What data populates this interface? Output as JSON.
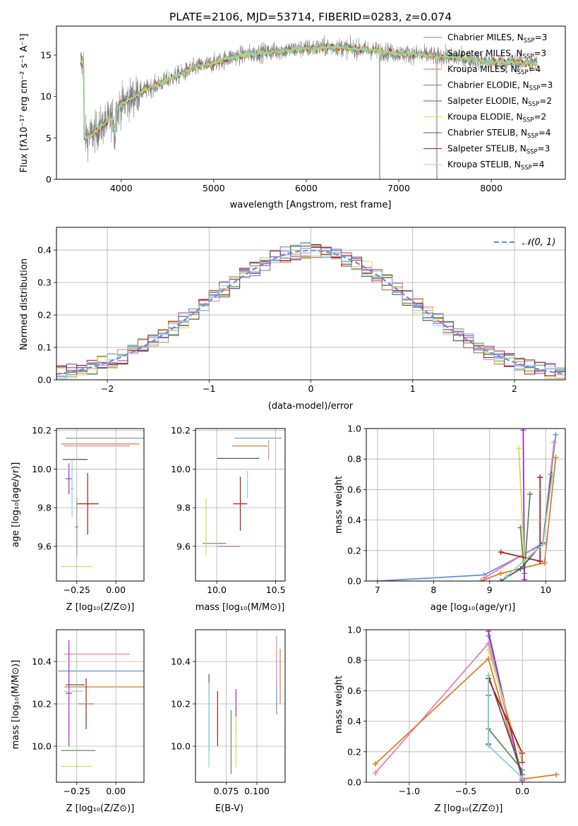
{
  "figure": {
    "title": "PLATE=2106, MJD=53714, FIBERID=0283, z=0.074"
  },
  "colors": {
    "c_miles_chab": "#6a8fd8",
    "c_miles_salp": "#e57fc0",
    "c_miles_krou": "#e07b20",
    "c_elodie_chab": "#5c8a5c",
    "c_elodie_salp": "#9b2fc0",
    "c_elodie_krou": "#d4e04a",
    "c_stelib_chab": "#555555",
    "c_stelib_salp": "#b01818",
    "c_stelib_krou": "#7fd8d8",
    "data_spectrum": "#808080"
  },
  "chart_data": [
    {
      "id": "spectrum",
      "type": "line",
      "xlabel": "wavelength [Angstrom, rest frame]",
      "ylabel": "Flux [fλ10⁻¹⁷ erg cm⁻² s⁻¹ A⁻¹]",
      "xlim": [
        3300,
        8800
      ],
      "ylim": [
        0,
        18.5
      ],
      "xticks": [
        4000,
        5000,
        6000,
        7000,
        8000
      ],
      "yticks": [
        0,
        5,
        10,
        15
      ],
      "legend_position": "right",
      "legend": [
        {
          "label": "Chabrier MILES, N",
          "sub": "SSP",
          "tail": "=3",
          "color": "c_miles_chab"
        },
        {
          "label": "Salpeter MILES, N",
          "sub": "SSP",
          "tail": "=3",
          "color": "c_miles_salp"
        },
        {
          "label": "Kroupa MILES, N",
          "sub": "SSP",
          "tail": "=4",
          "color": "c_miles_krou"
        },
        {
          "label": "Chabrier ELODIE, N",
          "sub": "SSP",
          "tail": "=3",
          "color": "c_elodie_chab"
        },
        {
          "label": "Salpeter ELODIE, N",
          "sub": "SSP",
          "tail": "=2",
          "color": "c_elodie_salp"
        },
        {
          "label": "Kroupa ELODIE, N",
          "sub": "SSP",
          "tail": "=2",
          "color": "c_elodie_krou"
        },
        {
          "label": "Chabrier STELIB, N",
          "sub": "SSP",
          "tail": "=4",
          "color": "c_stelib_chab"
        },
        {
          "label": "Salpeter STELIB, N",
          "sub": "SSP",
          "tail": "=3",
          "color": "c_stelib_salp"
        },
        {
          "label": "Kroupa STELIB, N",
          "sub": "SSP",
          "tail": "=4",
          "color": "c_stelib_krou"
        }
      ],
      "continuum": [
        [
          3600,
          5.0
        ],
        [
          3700,
          5.5
        ],
        [
          3800,
          6.5
        ],
        [
          3900,
          7.5
        ],
        [
          4000,
          9.0
        ],
        [
          4200,
          10.5
        ],
        [
          4500,
          12.0
        ],
        [
          4800,
          13.5
        ],
        [
          5000,
          14.0
        ],
        [
          5200,
          14.8
        ],
        [
          5500,
          15.3
        ],
        [
          6000,
          15.8
        ],
        [
          6300,
          16.0
        ],
        [
          6700,
          15.6
        ],
        [
          7000,
          15.2
        ],
        [
          7300,
          15.0
        ],
        [
          7500,
          14.8
        ],
        [
          8000,
          14.2
        ],
        [
          8500,
          14.0
        ]
      ]
    },
    {
      "id": "residuals",
      "type": "histogram",
      "xlabel": "(data-model)/error",
      "ylabel": "Normed distribution",
      "xlim": [
        -2.5,
        2.5
      ],
      "ylim": [
        0,
        0.47
      ],
      "xticks": [
        -2,
        -1,
        0,
        1,
        2
      ],
      "yticks": [
        0.0,
        0.1,
        0.2,
        0.3,
        0.4
      ],
      "bin_width": 0.1,
      "legend_position": "top-right",
      "normal_label": "𝒩(0, 1)",
      "normal_color": "c_miles_chab"
    },
    {
      "id": "age_vs_Z",
      "type": "errorbar",
      "xlabel": "Z [log₁₀(Z/Z⊙)]",
      "ylabel": "age  [log₁₀(age/yr)]",
      "xlim": [
        -0.38,
        0.18
      ],
      "ylim": [
        9.42,
        10.21
      ],
      "xticks": [
        -0.25,
        0.0
      ],
      "yticks": [
        9.6,
        9.8,
        10.0,
        10.2
      ],
      "points": [
        {
          "color": "c_miles_chab",
          "x": 0.0,
          "xerr": 0.32,
          "y": 10.16,
          "yerr": 0.0
        },
        {
          "color": "c_miles_salp",
          "x": -0.12,
          "xerr": 0.21,
          "y": 10.12,
          "yerr": 0.0
        },
        {
          "color": "c_miles_krou",
          "x": -0.1,
          "xerr": 0.25,
          "y": 10.13,
          "yerr": 0.0
        },
        {
          "color": "c_elodie_chab",
          "x": -0.25,
          "xerr": 0.01,
          "y": 9.7,
          "yerr": 0.15
        },
        {
          "color": "c_elodie_salp",
          "x": -0.3,
          "xerr": 0.02,
          "y": 9.95,
          "yerr": 0.08
        },
        {
          "color": "c_elodie_krou",
          "x": -0.25,
          "xerr": 0.1,
          "y": 9.495,
          "yerr": 0.0
        },
        {
          "color": "c_stelib_chab",
          "x": -0.26,
          "xerr": 0.08,
          "y": 10.05,
          "yerr": 0.0
        },
        {
          "color": "c_stelib_salp",
          "x": -0.18,
          "xerr": 0.07,
          "y": 9.82,
          "yerr": 0.16
        },
        {
          "color": "c_stelib_krou",
          "x": -0.28,
          "xerr": 0.01,
          "y": 9.9,
          "yerr": 0.15
        }
      ]
    },
    {
      "id": "age_vs_mass",
      "type": "errorbar",
      "xlabel": "mass [log₁₀(M/M⊙)]",
      "ylabel": "",
      "xlim": [
        9.82,
        10.58
      ],
      "ylim": [
        9.42,
        10.21
      ],
      "xticks": [
        10.0,
        10.5
      ],
      "yticks": [
        9.6,
        9.8,
        10.0,
        10.2
      ],
      "points": [
        {
          "color": "c_miles_chab",
          "x": 10.35,
          "xerr": 0.2,
          "y": 10.16,
          "yerr": 0.0
        },
        {
          "color": "c_miles_salp",
          "x": 10.44,
          "xerr": 0.0,
          "y": 10.1,
          "yerr": 0.05
        },
        {
          "color": "c_miles_krou",
          "x": 10.28,
          "xerr": 0.15,
          "y": 10.12,
          "yerr": 0.0
        },
        {
          "color": "c_elodie_chab",
          "x": 9.98,
          "xerr": 0.1,
          "y": 9.615,
          "yerr": 0.0
        },
        {
          "color": "c_elodie_salp",
          "x": 10.1,
          "xerr": 0.1,
          "y": 9.6,
          "yerr": 0.0
        },
        {
          "color": "c_elodie_krou",
          "x": 9.91,
          "xerr": 0.0,
          "y": 9.7,
          "yerr": 0.15
        },
        {
          "color": "c_stelib_chab",
          "x": 10.18,
          "xerr": 0.18,
          "y": 10.055,
          "yerr": 0.0
        },
        {
          "color": "c_stelib_salp",
          "x": 10.2,
          "xerr": 0.06,
          "y": 9.82,
          "yerr": 0.14
        },
        {
          "color": "c_stelib_krou",
          "x": 10.26,
          "xerr": 0.0,
          "y": 9.92,
          "yerr": 0.07
        }
      ]
    },
    {
      "id": "weight_vs_age",
      "type": "line",
      "xlabel": "age  [log₁₀(age/yr)]",
      "ylabel": "mass weight",
      "xlim": [
        6.8,
        10.35
      ],
      "ylim": [
        0,
        1.0
      ],
      "xticks": [
        7,
        8,
        9,
        10
      ],
      "yticks": [
        0.0,
        0.2,
        0.4,
        0.6,
        0.8,
        1.0
      ],
      "series": [
        {
          "color": "c_miles_chab",
          "x": [
            7.0,
            8.9,
            9.95,
            10.18
          ],
          "y": [
            0.0,
            0.04,
            0.24,
            0.96
          ]
        },
        {
          "color": "c_miles_salp",
          "x": [
            8.9,
            9.95,
            10.15
          ],
          "y": [
            0.02,
            0.25,
            0.91
          ]
        },
        {
          "color": "c_miles_krou",
          "x": [
            8.85,
            9.2,
            9.98,
            10.18
          ],
          "y": [
            0.0,
            0.05,
            0.12,
            0.81
          ]
        },
        {
          "color": "c_elodie_chab",
          "x": [
            9.55,
            9.62,
            9.72
          ],
          "y": [
            0.35,
            0.05,
            0.57
          ]
        },
        {
          "color": "c_elodie_salp",
          "x": [
            9.6,
            9.62
          ],
          "y": [
            0.99,
            0.01
          ]
        },
        {
          "color": "c_elodie_krou",
          "x": [
            9.52,
            9.62
          ],
          "y": [
            0.87,
            0.13
          ]
        },
        {
          "color": "c_stelib_chab",
          "x": [
            9.2,
            9.55,
            9.95,
            10.1
          ],
          "y": [
            0.0,
            0.08,
            0.25,
            0.7
          ]
        },
        {
          "color": "c_stelib_salp",
          "x": [
            9.2,
            9.9,
            9.9,
            9.9
          ],
          "y": [
            0.19,
            0.13,
            0.13,
            0.68
          ]
        },
        {
          "color": "c_stelib_krou",
          "x": [
            9.3,
            9.95,
            10.12
          ],
          "y": [
            0.03,
            0.24,
            0.7
          ]
        }
      ]
    },
    {
      "id": "mass_vs_Z",
      "type": "errorbar",
      "xlabel": "Z [log₁₀(Z/Z⊙)]",
      "ylabel": "mass [log₁₀(M/M⊙)]",
      "xlim": [
        -0.38,
        0.18
      ],
      "ylim": [
        9.83,
        10.55
      ],
      "xticks": [
        -0.25,
        0.0
      ],
      "yticks": [
        10.0,
        10.2,
        10.4
      ],
      "points": [
        {
          "color": "c_miles_chab",
          "x": -0.05,
          "xerr": 0.32,
          "y": 10.355,
          "yerr": 0.0
        },
        {
          "color": "c_miles_salp",
          "x": -0.12,
          "xerr": 0.21,
          "y": 10.435,
          "yerr": 0.0
        },
        {
          "color": "c_miles_krou",
          "x": -0.05,
          "xerr": 0.28,
          "y": 10.28,
          "yerr": 0.0
        },
        {
          "color": "c_elodie_chab",
          "x": -0.24,
          "xerr": 0.11,
          "y": 9.98,
          "yerr": 0.0
        },
        {
          "color": "c_elodie_salp",
          "x": -0.3,
          "xerr": 0.02,
          "y": 10.25,
          "yerr": 0.25
        },
        {
          "color": "c_elodie_krou",
          "x": -0.25,
          "xerr": 0.1,
          "y": 9.905,
          "yerr": 0.0
        },
        {
          "color": "c_stelib_chab",
          "x": -0.26,
          "xerr": 0.06,
          "y": 10.29,
          "yerr": 0.0
        },
        {
          "color": "c_stelib_salp",
          "x": -0.19,
          "xerr": 0.05,
          "y": 10.2,
          "yerr": 0.12
        },
        {
          "color": "c_stelib_krou",
          "x": -0.27,
          "xerr": 0.06,
          "y": 10.26,
          "yerr": 0.0
        }
      ]
    },
    {
      "id": "mass_vs_EBV",
      "type": "errorbar",
      "xlabel": "E(B-V)",
      "ylabel": "",
      "xlim": [
        0.05,
        0.123
      ],
      "ylim": [
        9.83,
        10.55
      ],
      "xticks": [
        0.075,
        0.1
      ],
      "yticks": [
        10.0,
        10.2,
        10.4
      ],
      "points": [
        {
          "color": "c_miles_chab",
          "x": 0.116,
          "xerr": 0.0,
          "y": 10.23,
          "yerr": 0.08
        },
        {
          "color": "c_miles_salp",
          "x": 0.116,
          "xerr": 0.0,
          "y": 10.4,
          "yerr": 0.12
        },
        {
          "color": "c_miles_krou",
          "x": 0.119,
          "xerr": 0.0,
          "y": 10.33,
          "yerr": 0.13
        },
        {
          "color": "c_elodie_chab",
          "x": 0.079,
          "xerr": 0.0,
          "y": 10.02,
          "yerr": 0.15
        },
        {
          "color": "c_elodie_salp",
          "x": 0.083,
          "xerr": 0.0,
          "y": 10.17,
          "yerr": 0.1
        },
        {
          "color": "c_elodie_krou",
          "x": 0.083,
          "xerr": 0.0,
          "y": 10.02,
          "yerr": 0.12
        },
        {
          "color": "c_stelib_chab",
          "x": 0.061,
          "xerr": 0.0,
          "y": 10.16,
          "yerr": 0.18
        },
        {
          "color": "c_stelib_salp",
          "x": 0.068,
          "xerr": 0.0,
          "y": 10.13,
          "yerr": 0.13
        },
        {
          "color": "c_stelib_krou",
          "x": 0.061,
          "xerr": 0.0,
          "y": 10.1,
          "yerr": 0.2
        }
      ]
    },
    {
      "id": "weight_vs_Z",
      "type": "line",
      "xlabel": "Z [log₁₀(Z/Z⊙)]",
      "ylabel": "mass weight",
      "xlim": [
        -1.38,
        0.38
      ],
      "ylim": [
        0,
        1.0
      ],
      "xticks": [
        -1.0,
        -0.5,
        0.0
      ],
      "yticks": [
        0.0,
        0.2,
        0.4,
        0.6,
        0.8,
        1.0
      ],
      "series": [
        {
          "color": "c_miles_chab",
          "x": [
            -0.3,
            0.0
          ],
          "y": [
            0.96,
            0.03
          ]
        },
        {
          "color": "c_miles_salp",
          "x": [
            -1.3,
            -0.3,
            0.0
          ],
          "y": [
            0.06,
            0.91,
            0.03
          ]
        },
        {
          "color": "c_miles_krou",
          "x": [
            -1.3,
            -0.3,
            0.0,
            0.3
          ],
          "y": [
            0.12,
            0.81,
            0.02,
            0.05
          ]
        },
        {
          "color": "c_elodie_chab",
          "x": [
            -0.3,
            -0.3,
            0.0
          ],
          "y": [
            0.57,
            0.35,
            0.08
          ]
        },
        {
          "color": "c_elodie_salp",
          "x": [
            -0.3,
            0.0
          ],
          "y": [
            0.99,
            0.01
          ]
        },
        {
          "color": "c_elodie_krou",
          "x": [
            -0.3,
            0.0
          ],
          "y": [
            0.87,
            0.13
          ]
        },
        {
          "color": "c_stelib_chab",
          "x": [
            -0.3,
            -0.3,
            0.0
          ],
          "y": [
            0.25,
            0.7,
            0.05
          ]
        },
        {
          "color": "c_stelib_salp",
          "x": [
            -0.3,
            0.0,
            0.0
          ],
          "y": [
            0.68,
            0.19,
            0.13
          ]
        },
        {
          "color": "c_stelib_krou",
          "x": [
            -0.3,
            -0.3,
            0.0
          ],
          "y": [
            0.7,
            0.24,
            0.03
          ]
        }
      ]
    }
  ]
}
